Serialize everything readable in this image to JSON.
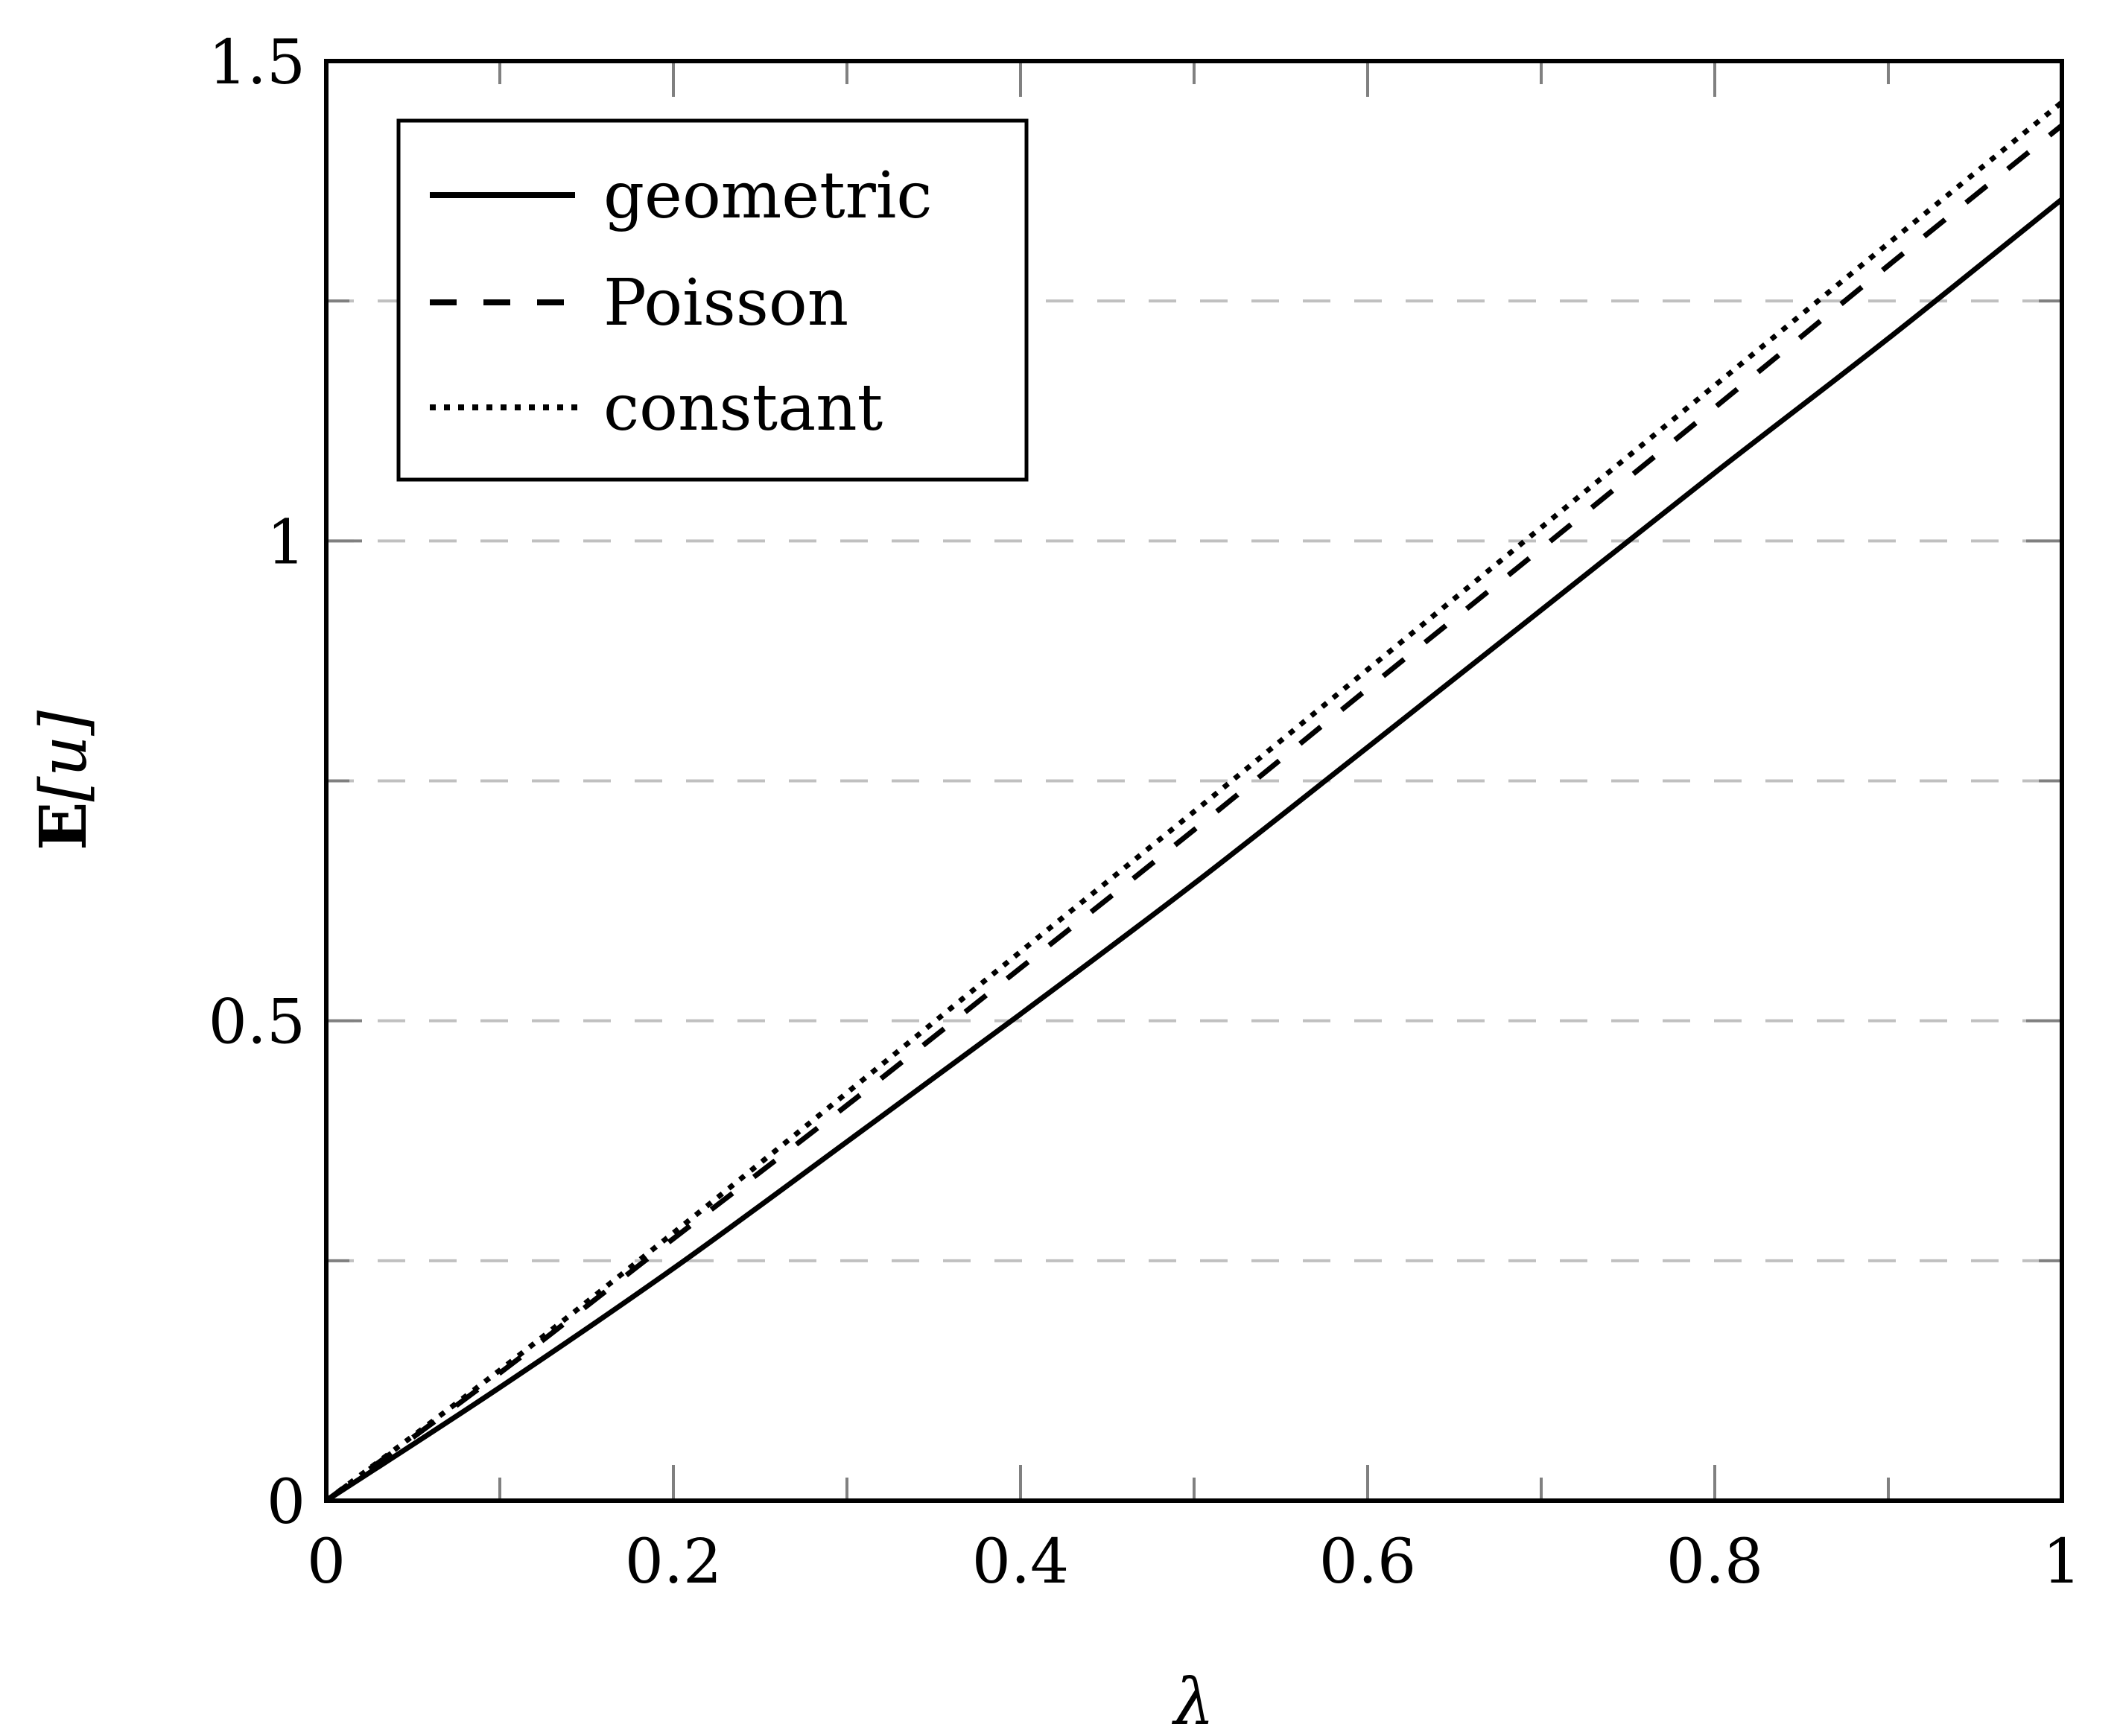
{
  "chart_data": {
    "type": "line",
    "title": "",
    "xlabel": "λ",
    "ylabel": "E[u]",
    "xlim": [
      0,
      1
    ],
    "ylim": [
      0,
      1.5
    ],
    "x_ticks": [
      0,
      0.2,
      0.4,
      0.6,
      0.8,
      1
    ],
    "x_tick_labels": [
      "0",
      "0.2",
      "0.4",
      "0.6",
      "0.8",
      "1"
    ],
    "x_minor_ticks": [
      0.1,
      0.3,
      0.5,
      0.7,
      0.9
    ],
    "y_ticks": [
      0,
      0.5,
      1,
      1.5
    ],
    "y_tick_labels": [
      "0",
      "0.5",
      "1",
      "1.5"
    ],
    "y_minor_ticks": [
      0.25,
      0.75,
      1.25
    ],
    "grid": {
      "y": true,
      "x": false,
      "style": "dashed",
      "color": "#c0c0c0",
      "levels": [
        0.25,
        0.5,
        0.75,
        1.0,
        1.25
      ]
    },
    "legend_position": "upper left",
    "x": [
      0,
      0.1,
      0.2,
      0.3,
      0.4,
      0.5,
      0.6,
      0.7,
      0.8,
      0.9,
      1.0
    ],
    "series": [
      {
        "name": "geometric",
        "style": "solid",
        "color": "#000000",
        "values": [
          0,
          0.118,
          0.242,
          0.374,
          0.507,
          0.643,
          0.785,
          0.928,
          1.071,
          1.211,
          1.356
        ]
      },
      {
        "name": "Poisson",
        "style": "dashed",
        "color": "#000000",
        "values": [
          0,
          0.133,
          0.273,
          0.412,
          0.555,
          0.699,
          0.846,
          0.992,
          1.139,
          1.287,
          1.433
        ]
      },
      {
        "name": "constant",
        "style": "dotted",
        "color": "#000000",
        "values": [
          0,
          0.136,
          0.279,
          0.425,
          0.572,
          0.718,
          0.866,
          1.014,
          1.162,
          1.31,
          1.457
        ]
      }
    ]
  },
  "legend": {
    "items": [
      {
        "label": "geometric",
        "style": "solid"
      },
      {
        "label": "Poisson",
        "style": "dashed"
      },
      {
        "label": "constant",
        "style": "dotted"
      }
    ]
  },
  "axes": {
    "xlabel": "λ",
    "ylabel_prefix": "E",
    "ylabel_arg": "[u]"
  },
  "colors": {
    "axis": "#000000",
    "tick": "#808080",
    "grid": "#c0c0c0",
    "line": "#000000"
  }
}
